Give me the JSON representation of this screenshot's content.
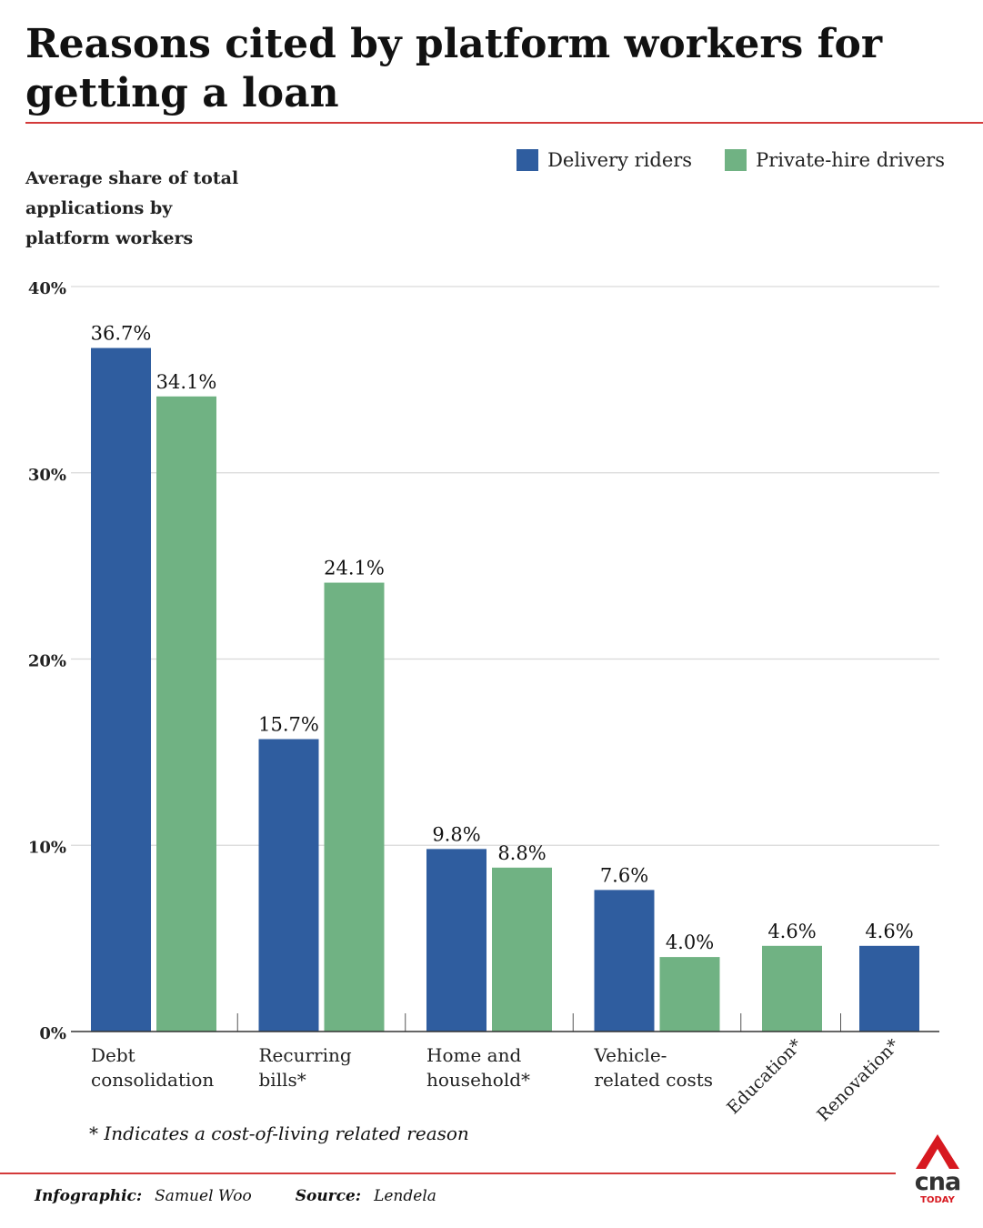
{
  "title": "Reasons cited by platform workers for getting a loan",
  "ytitle": "Average share of total applications by platform workers",
  "legend": {
    "delivery": "Delivery riders",
    "private_hire": "Private-hire drivers"
  },
  "colors": {
    "delivery": "#2f5d9f",
    "private_hire": "#70b283",
    "accent": "#d33a3a",
    "grid": "#d9d9d9"
  },
  "note": "* Indicates a cost-of-living related reason",
  "credits": {
    "infographic_label": "Infographic:",
    "infographic_value": "Samuel Woo",
    "source_label": "Source:",
    "source_value": "Lendela"
  },
  "logo": {
    "word": "cna",
    "sub": "TODAY"
  },
  "chart_data": {
    "type": "bar",
    "ylim": [
      0,
      40
    ],
    "yticks": [
      "0%",
      "10%",
      "20%",
      "30%",
      "40%"
    ],
    "grid": true,
    "legend_position": "top-right",
    "categories": [
      {
        "label": "Debt consolidation",
        "lines": [
          "Debt",
          "consolidation"
        ],
        "rotated": false
      },
      {
        "label": "Recurring bills*",
        "lines": [
          "Recurring",
          "bills*"
        ],
        "rotated": false
      },
      {
        "label": "Home and household*",
        "lines": [
          "Home and",
          "household*"
        ],
        "rotated": false
      },
      {
        "label": "Vehicle-related costs",
        "lines": [
          "Vehicle-",
          "related costs"
        ],
        "rotated": false
      },
      {
        "label": "Education*",
        "lines": [
          "Education*"
        ],
        "rotated": true
      },
      {
        "label": "Renovation*",
        "lines": [
          "Renovation*"
        ],
        "rotated": true
      }
    ],
    "series": [
      {
        "name": "Delivery riders",
        "values": [
          36.7,
          15.7,
          9.8,
          7.6,
          null,
          4.6
        ],
        "labels": [
          "36.7%",
          "15.7%",
          "9.8%",
          "7.6%",
          null,
          "4.6%"
        ]
      },
      {
        "name": "Private-hire drivers",
        "values": [
          34.1,
          24.1,
          8.8,
          4.0,
          4.6,
          null
        ],
        "labels": [
          "34.1%",
          "24.1%",
          "8.8%",
          "4.0%",
          "4.6%",
          null
        ]
      }
    ]
  }
}
